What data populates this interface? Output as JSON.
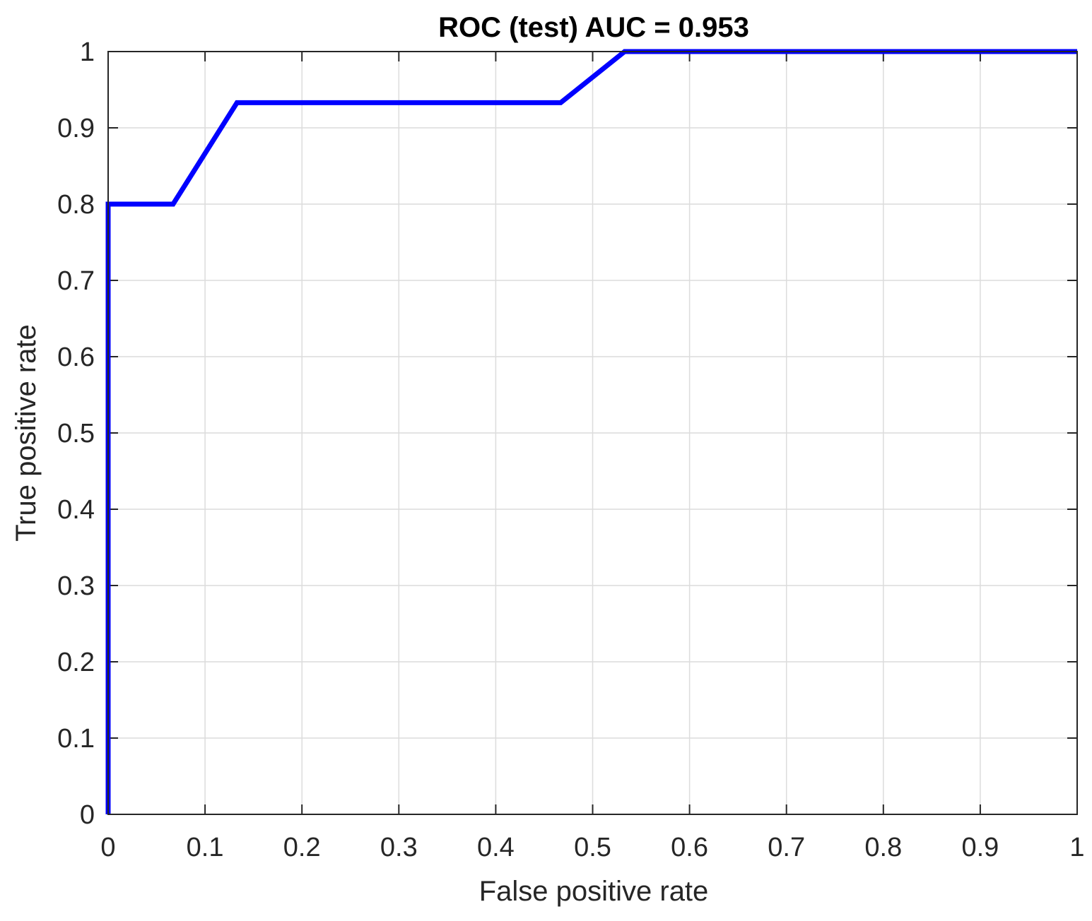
{
  "chart_data": {
    "type": "line",
    "title": "ROC (test) AUC = 0.953",
    "xlabel": "False positive rate",
    "ylabel": "True positive rate",
    "xlim": [
      0,
      1
    ],
    "ylim": [
      0,
      1
    ],
    "grid": true,
    "x_ticks": [
      {
        "value": 0,
        "label": "0"
      },
      {
        "value": 0.1,
        "label": "0.1"
      },
      {
        "value": 0.2,
        "label": "0.2"
      },
      {
        "value": 0.3,
        "label": "0.3"
      },
      {
        "value": 0.4,
        "label": "0.4"
      },
      {
        "value": 0.5,
        "label": "0.5"
      },
      {
        "value": 0.6,
        "label": "0.6"
      },
      {
        "value": 0.7,
        "label": "0.7"
      },
      {
        "value": 0.8,
        "label": "0.8"
      },
      {
        "value": 0.9,
        "label": "0.9"
      },
      {
        "value": 1,
        "label": "1"
      }
    ],
    "y_ticks": [
      {
        "value": 0,
        "label": "0"
      },
      {
        "value": 0.1,
        "label": "0.1"
      },
      {
        "value": 0.2,
        "label": "0.2"
      },
      {
        "value": 0.3,
        "label": "0.3"
      },
      {
        "value": 0.4,
        "label": "0.4"
      },
      {
        "value": 0.5,
        "label": "0.5"
      },
      {
        "value": 0.6,
        "label": "0.6"
      },
      {
        "value": 0.7,
        "label": "0.7"
      },
      {
        "value": 0.8,
        "label": "0.8"
      },
      {
        "value": 0.9,
        "label": "0.9"
      },
      {
        "value": 1,
        "label": "1"
      }
    ],
    "series": [
      {
        "color": "#0000ff",
        "points": [
          {
            "x": 0,
            "y": 0
          },
          {
            "x": 0,
            "y": 0.8
          },
          {
            "x": 0.067,
            "y": 0.8
          },
          {
            "x": 0.133,
            "y": 0.933
          },
          {
            "x": 0.467,
            "y": 0.933
          },
          {
            "x": 0.533,
            "y": 1
          },
          {
            "x": 1,
            "y": 1
          }
        ]
      }
    ]
  }
}
